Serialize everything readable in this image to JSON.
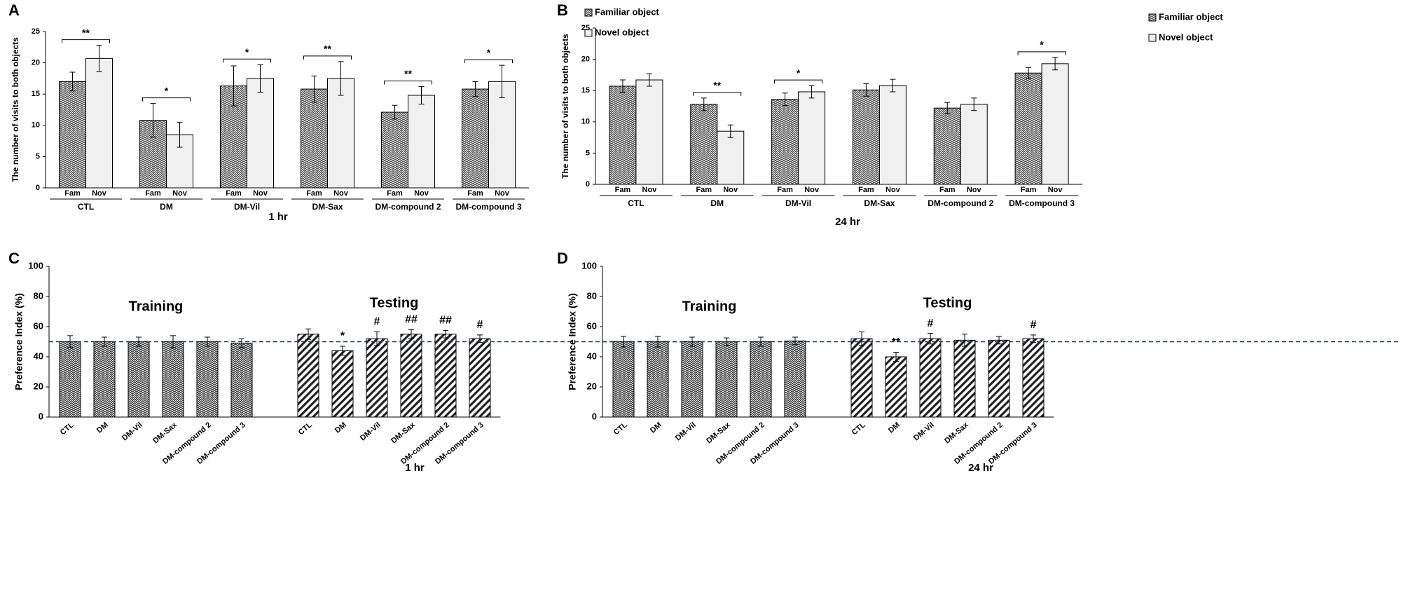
{
  "chart_data": [
    {
      "type": "grouped_bar",
      "panel": "A",
      "ylabel": "The number of visits to both objects",
      "xlabel": "1 hr",
      "categories": [
        "CTL",
        "DM",
        "DM-Vil",
        "DM-Sax",
        "DM-compound 2",
        "DM-compound 3"
      ],
      "bar_labels": [
        "Fam",
        "Nov"
      ],
      "series": [
        {
          "name": "Familiar object",
          "color": "#3a3a3a",
          "pattern": "zigzag",
          "values": [
            17,
            10.8,
            16.3,
            15.8,
            12.1,
            15.8
          ],
          "errors": [
            1.5,
            2.7,
            3.2,
            2.1,
            1.1,
            1.2
          ]
        },
        {
          "name": "Novel object",
          "color": "#f0f0f0",
          "pattern": "solid",
          "values": [
            20.7,
            8.5,
            17.5,
            17.5,
            14.8,
            17
          ],
          "errors": [
            2.1,
            2.0,
            2.2,
            2.7,
            1.4,
            2.6
          ]
        }
      ],
      "significance": [
        "**",
        "*",
        "*",
        "**",
        "**",
        "*"
      ],
      "ylim": [
        0,
        25
      ],
      "yticks": [
        0,
        5,
        10,
        15,
        20,
        25
      ],
      "legend": "top-right"
    },
    {
      "type": "grouped_bar",
      "panel": "B",
      "ylabel": "The number of visits to both objects",
      "xlabel": "24 hr",
      "categories": [
        "CTL",
        "DM",
        "DM-Vil",
        "DM-Sax",
        "DM-compound 2",
        "DM-compound 3"
      ],
      "bar_labels": [
        "Fam",
        "Nov"
      ],
      "series": [
        {
          "name": "Familiar object",
          "color": "#3a3a3a",
          "pattern": "zigzag",
          "values": [
            15.7,
            12.8,
            13.6,
            15.1,
            12.2,
            17.8
          ],
          "errors": [
            1.0,
            1.0,
            1.0,
            1.0,
            0.9,
            0.9
          ]
        },
        {
          "name": "Novel object",
          "color": "#f0f0f0",
          "pattern": "solid",
          "values": [
            16.7,
            8.5,
            14.8,
            15.8,
            12.8,
            19.3
          ],
          "errors": [
            1.0,
            1.0,
            1.0,
            1.0,
            1.0,
            1.0
          ]
        }
      ],
      "significance": [
        null,
        "**",
        "*",
        null,
        null,
        "*"
      ],
      "ylim": [
        0,
        25
      ],
      "yticks": [
        0,
        5,
        10,
        15,
        20,
        25
      ],
      "legend": "top-right"
    },
    {
      "type": "phase_bar",
      "panel": "C",
      "ylabel": "Preference Index (%)",
      "xlabel": "1 hr",
      "categories": [
        "CTL",
        "DM",
        "DM-Vil",
        "DM-Sax",
        "DM-compound 2",
        "DM-compound 3"
      ],
      "series": [
        {
          "name": "Training",
          "color": "#222222",
          "pattern": "zigzag",
          "values": [
            50,
            50,
            50,
            50,
            50,
            49
          ],
          "errors": [
            4,
            3,
            3,
            4,
            3,
            3
          ],
          "annotations": [
            null,
            null,
            null,
            null,
            null,
            null
          ]
        },
        {
          "name": "Testing",
          "color": "#222222",
          "pattern": "diagonal",
          "values": [
            55,
            44,
            52,
            55,
            55,
            52
          ],
          "errors": [
            3.5,
            3,
            4.5,
            3,
            2.5,
            2.5
          ],
          "annotations": [
            null,
            "*",
            "#",
            "##",
            "##",
            "#"
          ]
        }
      ],
      "reference_line": 50,
      "ylim": [
        0,
        100
      ],
      "yticks": [
        0,
        20,
        40,
        60,
        80,
        100
      ]
    },
    {
      "type": "phase_bar",
      "panel": "D",
      "ylabel": "Preference Index (%)",
      "xlabel": "24 hr",
      "categories": [
        "CTL",
        "DM",
        "DM-Vil",
        "DM-Sax",
        "DM-compound 2",
        "DM-compound 3"
      ],
      "series": [
        {
          "name": "Training",
          "color": "#222222",
          "pattern": "zigzag",
          "values": [
            50,
            50,
            50,
            50,
            50,
            50.5
          ],
          "errors": [
            3.5,
            3.5,
            3,
            2.5,
            3,
            2.5
          ],
          "annotations": [
            null,
            null,
            null,
            null,
            null,
            null
          ]
        },
        {
          "name": "Testing",
          "color": "#222222",
          "pattern": "diagonal",
          "values": [
            52,
            40,
            52,
            51,
            51,
            52
          ],
          "errors": [
            4.5,
            3,
            3.5,
            4,
            2.5,
            2.5
          ],
          "annotations": [
            null,
            "**",
            "#",
            null,
            null,
            "#"
          ]
        }
      ],
      "reference_line": 50,
      "ylim": [
        0,
        100
      ],
      "yticks": [
        0,
        20,
        40,
        60,
        80,
        100
      ]
    }
  ]
}
